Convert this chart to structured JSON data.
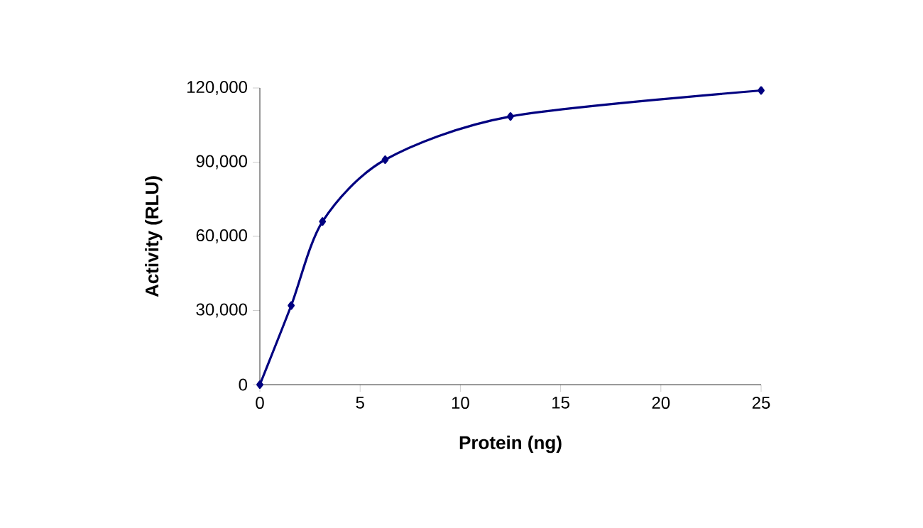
{
  "chart_data": {
    "type": "line",
    "xlabel": "Protein (ng)",
    "ylabel": "Activity (RLU)",
    "x": [
      0,
      1.5625,
      3.125,
      6.25,
      12.5,
      25
    ],
    "series": [
      {
        "color": "#000080",
        "values": [
          0,
          32000,
          66000,
          91000,
          108500,
          119000
        ]
      }
    ],
    "xlim": [
      0,
      25
    ],
    "xticks": [
      0,
      5,
      10,
      15,
      20,
      25
    ],
    "ylim": [
      0,
      120000
    ],
    "yticks": [
      {
        "value": 0,
        "label": "0"
      },
      {
        "value": 30000,
        "label": "30,000"
      },
      {
        "value": 60000,
        "label": "60,000"
      },
      {
        "value": 90000,
        "label": "90,000"
      },
      {
        "value": 120000,
        "label": "120,000"
      }
    ],
    "marker": "diamond",
    "line_style": "solid",
    "grid": false
  }
}
